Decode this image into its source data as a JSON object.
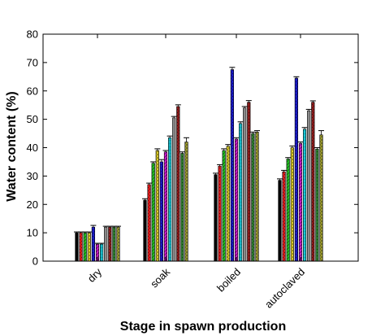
{
  "chart_data": {
    "type": "bar",
    "title": "",
    "xlabel": "Stage in spawn production",
    "ylabel": "Water content (%)",
    "ylim": [
      0,
      80
    ],
    "yticks": [
      0,
      10,
      20,
      30,
      40,
      50,
      60,
      70,
      80
    ],
    "categories": [
      "dry",
      "soak",
      "boiled",
      "autoclaved"
    ],
    "grid": false,
    "legend": "none",
    "series": [
      {
        "values": [
          10.0,
          21.5,
          30.5,
          28.5
        ],
        "errors": [
          0.3,
          0.5,
          0.5,
          0.5
        ],
        "color": "#000000",
        "pattern": "solid"
      },
      {
        "values": [
          10.0,
          27.0,
          33.5,
          31.5
        ],
        "errors": [
          0.3,
          0.5,
          0.5,
          0.5
        ],
        "color": "#d81b1b",
        "pattern": "dots"
      },
      {
        "values": [
          10.0,
          34.5,
          39.0,
          36.0
        ],
        "errors": [
          0.3,
          0.5,
          0.6,
          0.5
        ],
        "color": "#22c022",
        "pattern": "hatch"
      },
      {
        "values": [
          10.0,
          39.0,
          40.5,
          40.0
        ],
        "errors": [
          0.3,
          0.6,
          0.6,
          0.6
        ],
        "color": "#e8d82a",
        "pattern": "cross"
      },
      {
        "values": [
          12.0,
          35.0,
          67.5,
          64.5
        ],
        "errors": [
          0.6,
          0.8,
          0.8,
          0.5
        ],
        "color": "#1818c8",
        "pattern": "dots"
      },
      {
        "values": [
          6.0,
          38.5,
          43.0,
          41.5
        ],
        "errors": [
          0.3,
          0.5,
          0.5,
          0.5
        ],
        "color": "#d018d0",
        "pattern": "hatch"
      },
      {
        "values": [
          6.0,
          43.5,
          48.5,
          46.5
        ],
        "errors": [
          0.3,
          0.6,
          0.6,
          0.6
        ],
        "color": "#18c8d8",
        "pattern": "grid"
      },
      {
        "values": [
          12.0,
          50.5,
          54.0,
          53.0
        ],
        "errors": [
          0.3,
          0.5,
          0.5,
          0.5
        ],
        "color": "#8a8a8a",
        "pattern": "solid"
      },
      {
        "values": [
          12.0,
          54.5,
          56.0,
          56.0
        ],
        "errors": [
          0.3,
          0.6,
          0.6,
          0.5
        ],
        "color": "#8b1a1a",
        "pattern": "dots"
      },
      {
        "values": [
          12.0,
          38.0,
          45.0,
          39.5
        ],
        "errors": [
          0.3,
          0.5,
          0.5,
          0.5
        ],
        "color": "#2e7a2e",
        "pattern": "dots"
      },
      {
        "values": [
          12.0,
          42.0,
          45.5,
          44.5
        ],
        "errors": [
          0.3,
          1.5,
          0.5,
          1.5
        ],
        "color": "#a0a030",
        "pattern": "cross"
      }
    ]
  }
}
